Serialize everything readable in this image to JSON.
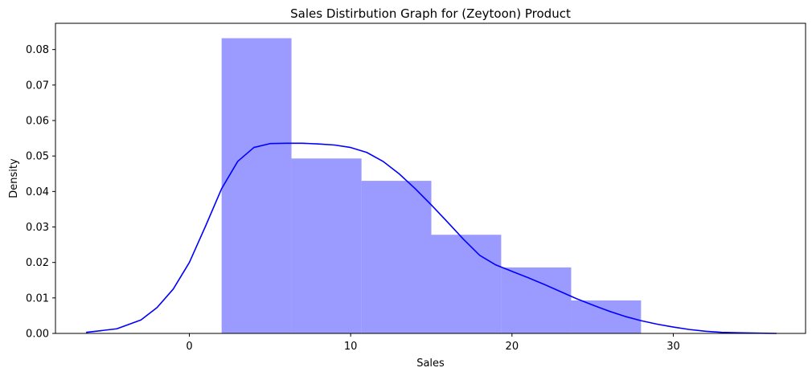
{
  "chart_data": {
    "type": "bar",
    "title": "Sales Distirbution Graph for (Zeytoon) Product",
    "xlabel": "Sales",
    "ylabel": "Density",
    "xlim": [
      -8.3,
      38.2
    ],
    "ylim": [
      0,
      0.0874
    ],
    "xticks": [
      0,
      10,
      20,
      30
    ],
    "yticks": [
      0.0,
      0.01,
      0.02,
      0.03,
      0.04,
      0.05,
      0.06,
      0.07,
      0.08
    ],
    "ytick_labels": [
      "0.00",
      "0.01",
      "0.02",
      "0.03",
      "0.04",
      "0.05",
      "0.06",
      "0.07",
      "0.08"
    ],
    "grid": false,
    "histogram": {
      "bins": [
        2.0,
        6.33,
        10.67,
        15.0,
        19.33,
        23.67,
        28.0
      ],
      "density": [
        0.0832,
        0.0493,
        0.043,
        0.0278,
        0.0186,
        0.0093
      ],
      "color": "#9a9aff"
    },
    "kde": {
      "color": "#0000ff",
      "x": [
        -6.4,
        -4.5,
        -3.0,
        -2.0,
        -1.0,
        0.0,
        1.0,
        2.0,
        3.0,
        4.0,
        5.0,
        6.0,
        7.0,
        8.0,
        9.0,
        10.0,
        11.0,
        12.0,
        13.0,
        14.0,
        15.0,
        16.0,
        17.0,
        18.0,
        19.0,
        20.0,
        21.0,
        22.0,
        23.0,
        24.0,
        25.0,
        26.0,
        27.0,
        28.0,
        29.0,
        30.0,
        31.0,
        32.0,
        33.0,
        34.0,
        35.0,
        36.4
      ],
      "y": [
        0.0003,
        0.0013,
        0.0038,
        0.0073,
        0.0125,
        0.02,
        0.0302,
        0.0408,
        0.0485,
        0.0524,
        0.0535,
        0.0536,
        0.0536,
        0.0534,
        0.0531,
        0.0524,
        0.051,
        0.0485,
        0.045,
        0.0408,
        0.0362,
        0.0314,
        0.0265,
        0.022,
        0.0193,
        0.0175,
        0.0157,
        0.0138,
        0.0118,
        0.0098,
        0.008,
        0.0063,
        0.0048,
        0.0036,
        0.0026,
        0.0018,
        0.0011,
        0.0006,
        0.0003,
        0.0002,
        0.0001,
        0.0
      ]
    }
  }
}
